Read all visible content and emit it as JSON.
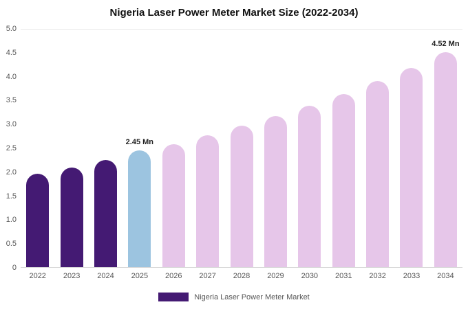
{
  "title": "Nigeria Laser Power Meter Market Size (2022-2034)",
  "legend": {
    "label": "Nigeria Laser Power Meter Market",
    "swatch_color": "#441A73"
  },
  "colors": {
    "dark_purple": "#441A73",
    "highlight_blue": "#9CC4E0",
    "light_pink": "#E6C6E9"
  },
  "chart_data": {
    "type": "bar",
    "title": "Nigeria Laser Power Meter Market Size (2022-2034)",
    "categories": [
      "2022",
      "2023",
      "2024",
      "2025",
      "2026",
      "2027",
      "2028",
      "2029",
      "2030",
      "2031",
      "2032",
      "2033",
      "2034"
    ],
    "values": [
      1.97,
      2.1,
      2.26,
      2.45,
      2.59,
      2.78,
      2.97,
      3.18,
      3.39,
      3.64,
      3.91,
      4.19,
      4.52
    ],
    "bar_colors": [
      "#441A73",
      "#441A73",
      "#441A73",
      "#9CC4E0",
      "#E6C6E9",
      "#E6C6E9",
      "#E6C6E9",
      "#E6C6E9",
      "#E6C6E9",
      "#E6C6E9",
      "#E6C6E9",
      "#E6C6E9",
      "#E6C6E9"
    ],
    "annotations": [
      {
        "index": 3,
        "text": "2.45 Mn"
      },
      {
        "index": 12,
        "text": "4.52 Mn"
      }
    ],
    "xlabel": "",
    "ylabel": "",
    "ylim": [
      0,
      5
    ],
    "yticks": [
      "5.0",
      "4.5",
      "4.0",
      "3.5",
      "3.0",
      "2.5",
      "2.0",
      "1.5",
      "1.0",
      "0.5",
      "0"
    ],
    "grid": false,
    "legend_position": "bottom",
    "unit": "Mn"
  }
}
